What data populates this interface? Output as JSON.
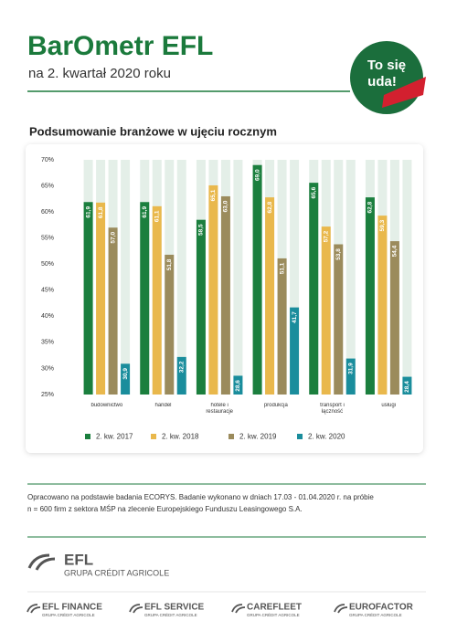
{
  "header": {
    "title": "BarOmetr EFL",
    "subtitle": "na 2. kwartał 2020 roku",
    "badge": [
      "To się",
      "uda!"
    ]
  },
  "chart_data": {
    "type": "bar",
    "title": "Podsumowanie branżowe w ujęciu rocznym",
    "categories": [
      "budownictwo",
      "handel",
      "hotele i restauracje",
      "produkcja",
      "transport i łączność",
      "usługi"
    ],
    "series": [
      {
        "name": "2. kw. 2017",
        "color": "#1b7f3e",
        "values": [
          61.9,
          61.9,
          58.5,
          69.0,
          65.6,
          62.8
        ],
        "value_labels": [
          "61,9",
          "61,9",
          "58,5",
          "69,0",
          "65,6",
          "62,8"
        ]
      },
      {
        "name": "2. kw. 2018",
        "color": "#e9b84c",
        "values": [
          61.8,
          61.1,
          65.1,
          62.8,
          57.2,
          59.3
        ],
        "value_labels": [
          "61,8",
          "61,1",
          "65,1",
          "62,8",
          "57,2",
          "59,3"
        ]
      },
      {
        "name": "2. kw. 2019",
        "color": "#9b8b5c",
        "values": [
          57.0,
          51.8,
          63.0,
          51.1,
          53.8,
          54.4
        ],
        "value_labels": [
          "57,0",
          "51,8",
          "63,0",
          "51,1",
          "53,8",
          "54,4"
        ]
      },
      {
        "name": "2. kw. 2020",
        "color": "#1a8d9c",
        "values": [
          30.9,
          32.2,
          28.6,
          41.7,
          31.9,
          28.4
        ],
        "value_labels": [
          "30,9",
          "32,2",
          "28,6",
          "41,7",
          "31,9",
          "28,4"
        ]
      }
    ],
    "ylim": [
      25,
      70
    ],
    "yticks": [
      {
        "value": 25,
        "label": "25%"
      },
      {
        "value": 30,
        "label": "30%"
      },
      {
        "value": 35,
        "label": "35%"
      },
      {
        "value": 40,
        "label": "40%"
      },
      {
        "value": 45,
        "label": "45%"
      },
      {
        "value": 50,
        "label": "50%"
      },
      {
        "value": 55,
        "label": "55%"
      },
      {
        "value": 60,
        "label": "60%"
      },
      {
        "value": 65,
        "label": "65%"
      },
      {
        "value": 70,
        "label": "70%"
      }
    ],
    "legend": "bottom"
  },
  "note": [
    "Opracowano na podstawie badania ECORYS. Badanie wykonano w dniach 17.03 - 01.04.2020 r. na próbie",
    "n = 600 firm z sektora MŚP na zlecenie Europejskiego Funduszu Leasingowego S.A."
  ],
  "footer": {
    "brand": "EFL",
    "group": "GRUPA CRÉDIT AGRICOLE",
    "companies": [
      {
        "name": "EFL FINANCE",
        "group": "GRUPA CRÉDIT AGRICOLE"
      },
      {
        "name": "EFL SERVICE",
        "group": "GRUPA CRÉDIT AGRICOLE"
      },
      {
        "name": "CAREFLEET",
        "group": "GRUPA CRÉDIT AGRICOLE"
      },
      {
        "name": "EUROFACTOR",
        "group": "GRUPA CRÉDIT AGRICOLE"
      }
    ]
  }
}
